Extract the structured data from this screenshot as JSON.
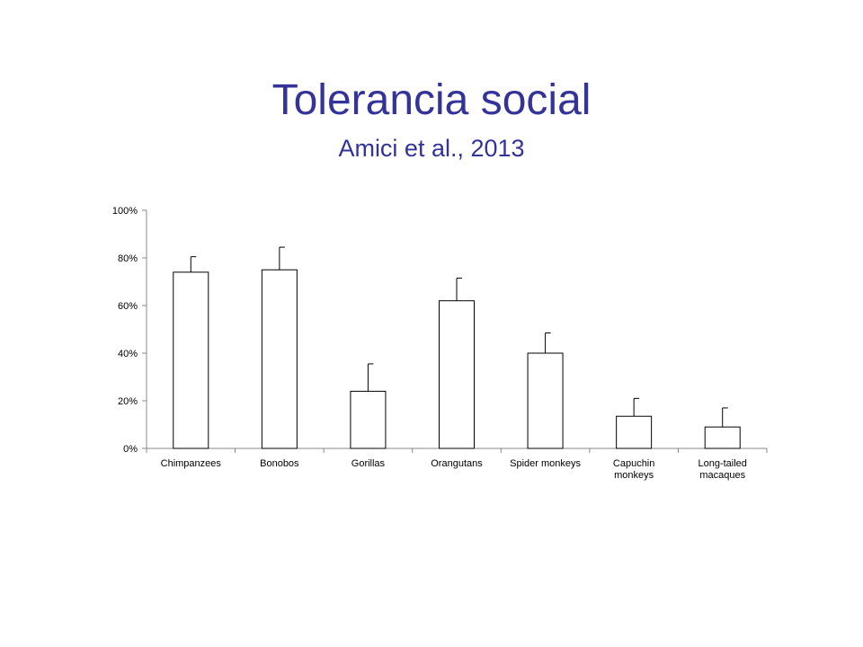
{
  "slide": {
    "title": "Tolerancia social",
    "subtitle": "Amici et al., 2013"
  },
  "colors": {
    "title": "#333399",
    "bar_fill": "#ffffff",
    "bar_stroke": "#000000",
    "axis": "#888888"
  },
  "chart_data": {
    "type": "bar",
    "categories": [
      [
        "Chimpanzees"
      ],
      [
        "Bonobos"
      ],
      [
        "Gorillas"
      ],
      [
        "Orangutans"
      ],
      [
        "Spider monkeys"
      ],
      [
        "Capuchin",
        "monkeys"
      ],
      [
        "Long-tailed",
        "macaques"
      ]
    ],
    "values": [
      74,
      75,
      24,
      62,
      40,
      13.5,
      9
    ],
    "error_upper": [
      80.5,
      84.5,
      35.5,
      71.5,
      48.5,
      21,
      17
    ],
    "ylim": [
      0,
      100
    ],
    "yticks": [
      0,
      20,
      40,
      60,
      80,
      100
    ],
    "ytick_labels": [
      "0%",
      "20%",
      "40%",
      "60%",
      "80%",
      "100%"
    ],
    "title": "",
    "xlabel": "",
    "ylabel": "",
    "grid": false,
    "legend": "none"
  }
}
